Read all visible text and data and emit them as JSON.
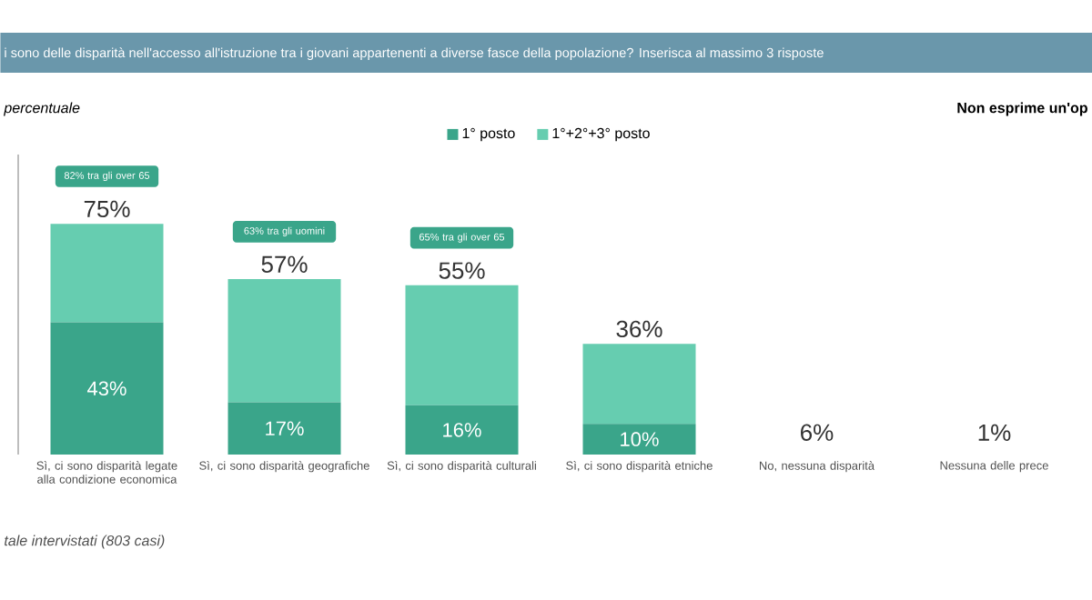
{
  "chart_data": {
    "type": "bar",
    "title": "i sono delle disparità nell'accesso all'istruzione tra i giovani appartenenti a diverse fasce della popolazione? Inserisca al massimo 3 risposte",
    "subtitle": "percentuale",
    "categories": [
      "Sì, ci sono disparità legate alla condizione economica",
      "Sì, ci sono disparità geografiche",
      "Sì, ci sono disparità culturali",
      "Sì, ci sono disparità etniche",
      "No, nessuna disparità",
      "Nessuna delle prece"
    ],
    "series": [
      {
        "name": "1° posto",
        "color": "#3aa58a",
        "values": [
          43,
          17,
          16,
          10,
          null,
          null
        ],
        "value_labels": [
          "43%",
          "17%",
          "16%",
          "10%",
          null,
          null
        ]
      },
      {
        "name": "1°+2°+3° posto",
        "color": "#66cdb0",
        "values": [
          32,
          40,
          39,
          26,
          null,
          null
        ]
      }
    ],
    "stacked": true,
    "totals": [
      "75%",
      "57%",
      "55%",
      "36%",
      null,
      null
    ],
    "legend": "top",
    "annotations": [
      "Non esprime un'op",
      "82% tra gli over 65",
      "63% tra gli uomini",
      "65% tra gli over 65",
      "6%",
      "1%",
      "tale intervistati (803 casi)"
    ]
  }
}
